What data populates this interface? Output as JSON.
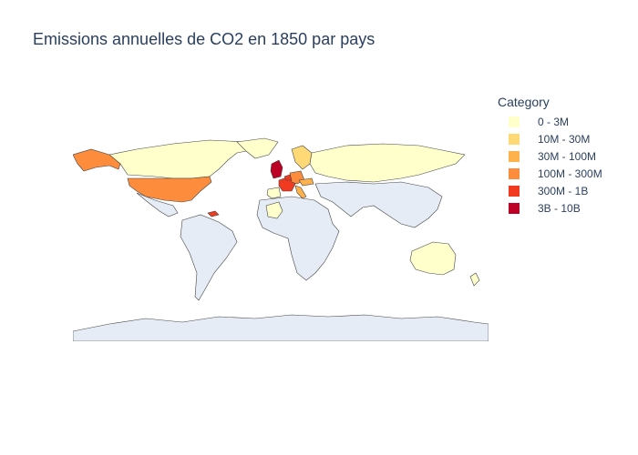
{
  "title": "Emissions annuelles de CO2 en 1850 par pays",
  "legend": {
    "title": "Category",
    "items": [
      {
        "label": "0 - 3M",
        "color": "#ffffcc"
      },
      {
        "label": "10M - 30M",
        "color": "#fed976"
      },
      {
        "label": "30M - 100M",
        "color": "#feb24c"
      },
      {
        "label": "100M - 300M",
        "color": "#fd8d3c"
      },
      {
        "label": "300M - 1B",
        "color": "#f03b20"
      },
      {
        "label": "3B - 10B",
        "color": "#bd0026"
      }
    ]
  },
  "colors": {
    "no_data": "#e5ecf6",
    "border": "#444444",
    "text": "#2a3f5f"
  },
  "regions": [
    {
      "name": "Canada",
      "category": "0 - 3M"
    },
    {
      "name": "Alaska",
      "category": "100M - 300M"
    },
    {
      "name": "Greenland",
      "category": "0 - 3M"
    },
    {
      "name": "United States",
      "category": "100M - 300M"
    },
    {
      "name": "Mexico",
      "category": "no data"
    },
    {
      "name": "South America",
      "category": "no data"
    },
    {
      "name": "Africa",
      "category": "no data"
    },
    {
      "name": "Algeria",
      "category": "0 - 3M"
    },
    {
      "name": "United Kingdom",
      "category": "3B - 10B"
    },
    {
      "name": "France",
      "category": "300M - 1B"
    },
    {
      "name": "Germany",
      "category": "100M - 300M"
    },
    {
      "name": "Belgium",
      "category": "300M - 1B"
    },
    {
      "name": "Spain",
      "category": "0 - 3M"
    },
    {
      "name": "Italy",
      "category": "30M - 100M"
    },
    {
      "name": "Austria",
      "category": "30M - 100M"
    },
    {
      "name": "Scandinavia",
      "category": "10M - 30M"
    },
    {
      "name": "Russia",
      "category": "0 - 3M"
    },
    {
      "name": "Middle East and Asia",
      "category": "no data"
    },
    {
      "name": "Australia",
      "category": "0 - 3M"
    },
    {
      "name": "New Zealand",
      "category": "0 - 3M"
    },
    {
      "name": "Antarctica",
      "category": "no data"
    },
    {
      "name": "Caribbean",
      "category": "300M - 1B"
    }
  ]
}
